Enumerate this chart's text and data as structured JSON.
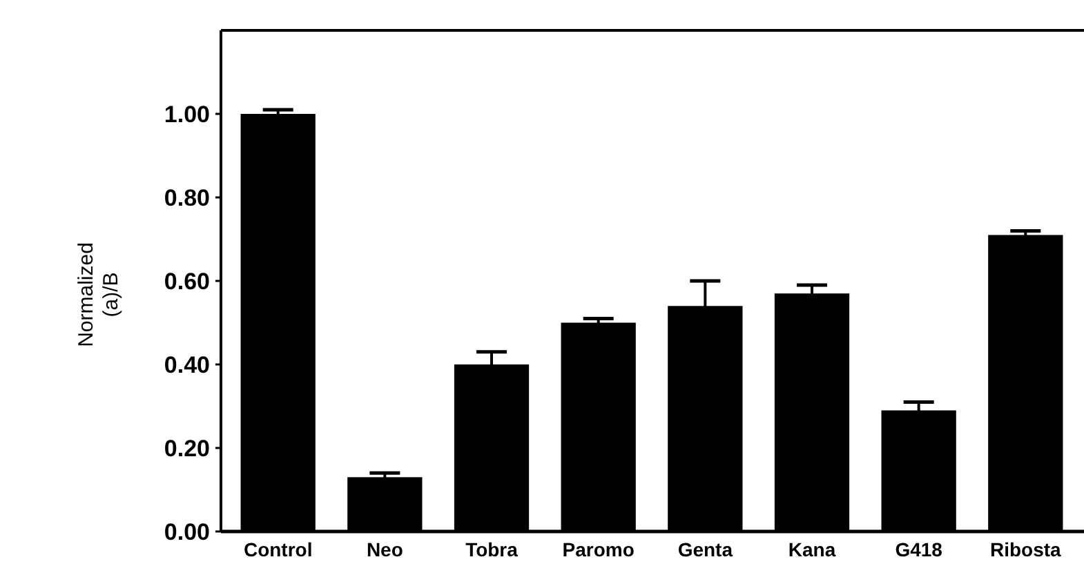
{
  "chart_data": {
    "type": "bar",
    "ylabel": "Normalized\n(a)/B",
    "categories": [
      "Control",
      "Neo",
      "Tobra",
      "Paromo",
      "Genta",
      "Kana",
      "G418",
      "Ribosta"
    ],
    "values": [
      1.0,
      0.13,
      0.4,
      0.5,
      0.54,
      0.57,
      0.29,
      0.71
    ],
    "errors": [
      0.01,
      0.01,
      0.03,
      0.01,
      0.06,
      0.02,
      0.02,
      0.01
    ],
    "color": "#000000",
    "ylim": [
      0,
      1.2
    ],
    "yticks": [
      {
        "value": 0,
        "label": "0.00"
      },
      {
        "value": 0.2,
        "label": "0.20"
      },
      {
        "value": 0.4,
        "label": "0.40"
      },
      {
        "value": 0.6,
        "label": "0.60"
      },
      {
        "value": 0.8,
        "label": "0.80"
      },
      {
        "value": 1.0,
        "label": "1.00"
      }
    ]
  }
}
